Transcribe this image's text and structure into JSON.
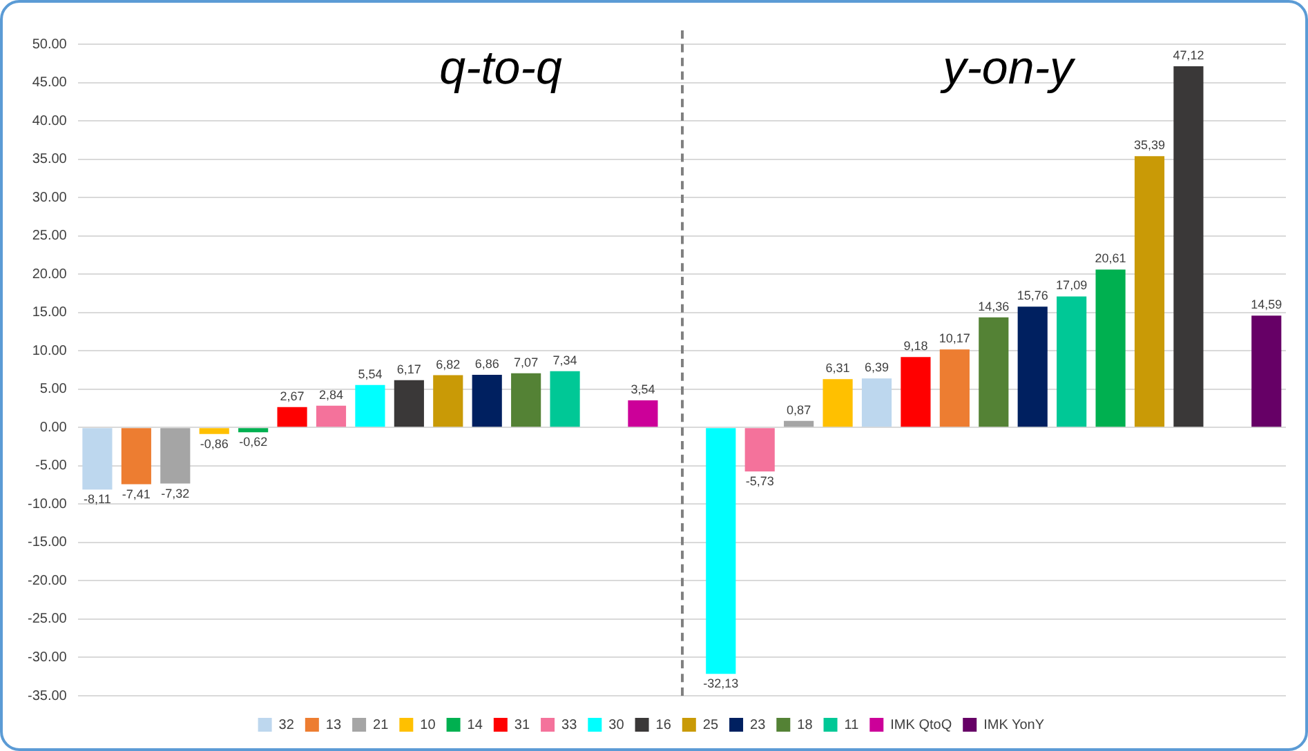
{
  "chart_data": {
    "type": "bar",
    "categories": [
      null,
      null,
      null,
      null,
      null,
      null,
      null,
      null,
      null,
      null,
      null,
      null,
      null,
      null,
      null,
      null,
      null,
      null,
      null,
      null,
      null,
      null,
      null,
      null,
      null,
      null,
      null,
      null,
      null,
      null,
      null
    ],
    "series": [
      {
        "name": "32",
        "color": "#bdd7ee",
        "values": [
          -8.11,
          null,
          null,
          null,
          null,
          null,
          null,
          null,
          null,
          null,
          null,
          null,
          null,
          null,
          null,
          null,
          null,
          null,
          null,
          null,
          6.39,
          null,
          null,
          null,
          null,
          null,
          null,
          null,
          null,
          null,
          null
        ],
        "value_labels": [
          "-8,11",
          null,
          null,
          null,
          null,
          null,
          null,
          null,
          null,
          null,
          null,
          null,
          null,
          null,
          null,
          null,
          null,
          null,
          null,
          null,
          "6,39",
          null,
          null,
          null,
          null,
          null,
          null,
          null,
          null,
          null,
          null
        ]
      },
      {
        "name": "13",
        "color": "#ed7d31",
        "values": [
          null,
          -7.41,
          null,
          null,
          null,
          null,
          null,
          null,
          null,
          null,
          null,
          null,
          null,
          null,
          null,
          null,
          null,
          null,
          null,
          null,
          null,
          null,
          10.17,
          null,
          null,
          null,
          null,
          null,
          null,
          null,
          null
        ],
        "value_labels": [
          null,
          "-7,41",
          null,
          null,
          null,
          null,
          null,
          null,
          null,
          null,
          null,
          null,
          null,
          null,
          null,
          null,
          null,
          null,
          null,
          null,
          null,
          null,
          "10,17",
          null,
          null,
          null,
          null,
          null,
          null,
          null,
          null
        ]
      },
      {
        "name": "21",
        "color": "#a5a5a5",
        "values": [
          null,
          null,
          -7.32,
          null,
          null,
          null,
          null,
          null,
          null,
          null,
          null,
          null,
          null,
          null,
          null,
          null,
          null,
          null,
          0.87,
          null,
          null,
          null,
          null,
          null,
          null,
          null,
          null,
          null,
          null,
          null,
          null
        ],
        "value_labels": [
          null,
          null,
          "-7,32",
          null,
          null,
          null,
          null,
          null,
          null,
          null,
          null,
          null,
          null,
          null,
          null,
          null,
          null,
          null,
          "0,87",
          null,
          null,
          null,
          null,
          null,
          null,
          null,
          null,
          null,
          null,
          null,
          null
        ]
      },
      {
        "name": "10",
        "color": "#ffc000",
        "values": [
          null,
          null,
          null,
          -0.86,
          null,
          null,
          null,
          null,
          null,
          null,
          null,
          null,
          null,
          null,
          null,
          null,
          null,
          null,
          null,
          6.31,
          null,
          null,
          null,
          null,
          null,
          null,
          null,
          null,
          null,
          null,
          null
        ],
        "value_labels": [
          null,
          null,
          null,
          "-0,86",
          null,
          null,
          null,
          null,
          null,
          null,
          null,
          null,
          null,
          null,
          null,
          null,
          null,
          null,
          null,
          "6,31",
          null,
          null,
          null,
          null,
          null,
          null,
          null,
          null,
          null,
          null,
          null
        ]
      },
      {
        "name": "14",
        "color": "#00b050",
        "values": [
          null,
          null,
          null,
          null,
          -0.62,
          null,
          null,
          null,
          null,
          null,
          null,
          null,
          null,
          null,
          null,
          null,
          null,
          null,
          null,
          null,
          null,
          null,
          null,
          null,
          null,
          null,
          20.61,
          null,
          null,
          null,
          null
        ],
        "value_labels": [
          null,
          null,
          null,
          null,
          "-0,62",
          null,
          null,
          null,
          null,
          null,
          null,
          null,
          null,
          null,
          null,
          null,
          null,
          null,
          null,
          null,
          null,
          null,
          null,
          null,
          null,
          null,
          "20,61",
          null,
          null,
          null,
          null
        ]
      },
      {
        "name": "31",
        "color": "#ff0000",
        "values": [
          null,
          null,
          null,
          null,
          null,
          2.67,
          null,
          null,
          null,
          null,
          null,
          null,
          null,
          null,
          null,
          null,
          null,
          null,
          null,
          null,
          null,
          9.18,
          null,
          null,
          null,
          null,
          null,
          null,
          null,
          null,
          null
        ],
        "value_labels": [
          null,
          null,
          null,
          null,
          null,
          "2,67",
          null,
          null,
          null,
          null,
          null,
          null,
          null,
          null,
          null,
          null,
          null,
          null,
          null,
          null,
          null,
          "9,18",
          null,
          null,
          null,
          null,
          null,
          null,
          null,
          null,
          null
        ]
      },
      {
        "name": "33",
        "color": "#f4729b",
        "values": [
          null,
          null,
          null,
          null,
          null,
          null,
          2.84,
          null,
          null,
          null,
          null,
          null,
          null,
          null,
          null,
          null,
          null,
          -5.73,
          null,
          null,
          null,
          null,
          null,
          null,
          null,
          null,
          null,
          null,
          null,
          null,
          null
        ],
        "value_labels": [
          null,
          null,
          null,
          null,
          null,
          null,
          "2,84",
          null,
          null,
          null,
          null,
          null,
          null,
          null,
          null,
          null,
          null,
          "-5,73",
          null,
          null,
          null,
          null,
          null,
          null,
          null,
          null,
          null,
          null,
          null,
          null,
          null
        ]
      },
      {
        "name": "30",
        "color": "#00ffff",
        "values": [
          null,
          null,
          null,
          null,
          null,
          null,
          null,
          5.54,
          null,
          null,
          null,
          null,
          null,
          null,
          null,
          null,
          -32.13,
          null,
          null,
          null,
          null,
          null,
          null,
          null,
          null,
          null,
          null,
          null,
          null,
          null,
          null
        ],
        "value_labels": [
          null,
          null,
          null,
          null,
          null,
          null,
          null,
          "5,54",
          null,
          null,
          null,
          null,
          null,
          null,
          null,
          null,
          "-32,13",
          null,
          null,
          null,
          null,
          null,
          null,
          null,
          null,
          null,
          null,
          null,
          null,
          null,
          null
        ]
      },
      {
        "name": "16",
        "color": "#3a3838",
        "values": [
          null,
          null,
          null,
          null,
          null,
          null,
          null,
          null,
          6.17,
          null,
          null,
          null,
          null,
          null,
          null,
          null,
          null,
          null,
          null,
          null,
          null,
          null,
          null,
          null,
          null,
          null,
          null,
          null,
          47.12,
          null,
          null
        ],
        "value_labels": [
          null,
          null,
          null,
          null,
          null,
          null,
          null,
          null,
          "6,17",
          null,
          null,
          null,
          null,
          null,
          null,
          null,
          null,
          null,
          null,
          null,
          null,
          null,
          null,
          null,
          null,
          null,
          null,
          null,
          "47,12",
          null,
          null
        ]
      },
      {
        "name": "25",
        "color": "#c99a06",
        "values": [
          null,
          null,
          null,
          null,
          null,
          null,
          null,
          null,
          null,
          6.82,
          null,
          null,
          null,
          null,
          null,
          null,
          null,
          null,
          null,
          null,
          null,
          null,
          null,
          null,
          null,
          null,
          null,
          35.39,
          null,
          null,
          null
        ],
        "value_labels": [
          null,
          null,
          null,
          null,
          null,
          null,
          null,
          null,
          null,
          "6,82",
          null,
          null,
          null,
          null,
          null,
          null,
          null,
          null,
          null,
          null,
          null,
          null,
          null,
          null,
          null,
          null,
          null,
          "35,39",
          null,
          null,
          null
        ]
      },
      {
        "name": "23",
        "color": "#002060",
        "values": [
          null,
          null,
          null,
          null,
          null,
          null,
          null,
          null,
          null,
          null,
          6.86,
          null,
          null,
          null,
          null,
          null,
          null,
          null,
          null,
          null,
          null,
          null,
          null,
          null,
          15.76,
          null,
          null,
          null,
          null,
          null,
          null
        ],
        "value_labels": [
          null,
          null,
          null,
          null,
          null,
          null,
          null,
          null,
          null,
          null,
          "6,86",
          null,
          null,
          null,
          null,
          null,
          null,
          null,
          null,
          null,
          null,
          null,
          null,
          null,
          "15,76",
          null,
          null,
          null,
          null,
          null,
          null
        ]
      },
      {
        "name": "18",
        "color": "#548235",
        "values": [
          null,
          null,
          null,
          null,
          null,
          null,
          null,
          null,
          null,
          null,
          null,
          7.07,
          null,
          null,
          null,
          null,
          null,
          null,
          null,
          null,
          null,
          null,
          null,
          14.36,
          null,
          null,
          null,
          null,
          null,
          null,
          null
        ],
        "value_labels": [
          null,
          null,
          null,
          null,
          null,
          null,
          null,
          null,
          null,
          null,
          null,
          "7,07",
          null,
          null,
          null,
          null,
          null,
          null,
          null,
          null,
          null,
          null,
          null,
          "14,36",
          null,
          null,
          null,
          null,
          null,
          null,
          null
        ]
      },
      {
        "name": "11",
        "color": "#00c896",
        "values": [
          null,
          null,
          null,
          null,
          null,
          null,
          null,
          null,
          null,
          null,
          null,
          null,
          7.34,
          null,
          null,
          null,
          null,
          null,
          null,
          null,
          null,
          null,
          null,
          null,
          null,
          17.09,
          null,
          null,
          null,
          null,
          null
        ],
        "value_labels": [
          null,
          null,
          null,
          null,
          null,
          null,
          null,
          null,
          null,
          null,
          null,
          null,
          "7,34",
          null,
          null,
          null,
          null,
          null,
          null,
          null,
          null,
          null,
          null,
          null,
          null,
          "17,09",
          null,
          null,
          null,
          null,
          null
        ]
      },
      {
        "name": "IMK QtoQ",
        "color": "#cc0099",
        "values": [
          null,
          null,
          null,
          null,
          null,
          null,
          null,
          null,
          null,
          null,
          null,
          null,
          null,
          null,
          3.54,
          null,
          null,
          null,
          null,
          null,
          null,
          null,
          null,
          null,
          null,
          null,
          null,
          null,
          null,
          null,
          null
        ],
        "value_labels": [
          null,
          null,
          null,
          null,
          null,
          null,
          null,
          null,
          null,
          null,
          null,
          null,
          null,
          null,
          "3,54",
          null,
          null,
          null,
          null,
          null,
          null,
          null,
          null,
          null,
          null,
          null,
          null,
          null,
          null,
          null,
          null
        ]
      },
      {
        "name": "IMK YonY",
        "color": "#660066",
        "values": [
          null,
          null,
          null,
          null,
          null,
          null,
          null,
          null,
          null,
          null,
          null,
          null,
          null,
          null,
          null,
          null,
          null,
          null,
          null,
          null,
          null,
          null,
          null,
          null,
          null,
          null,
          null,
          null,
          null,
          null,
          14.59
        ],
        "value_labels": [
          null,
          null,
          null,
          null,
          null,
          null,
          null,
          null,
          null,
          null,
          null,
          null,
          null,
          null,
          null,
          null,
          null,
          null,
          null,
          null,
          null,
          null,
          null,
          null,
          null,
          null,
          null,
          null,
          null,
          null,
          "14,59"
        ]
      }
    ],
    "ylim": [
      -35,
      50
    ],
    "yticks": [
      {
        "value": -35,
        "label": "-35.00"
      },
      {
        "value": -30,
        "label": "-30.00"
      },
      {
        "value": -25,
        "label": "-25.00"
      },
      {
        "value": -20,
        "label": "-20.00"
      },
      {
        "value": -15,
        "label": "-15.00"
      },
      {
        "value": -10,
        "label": "-10.00"
      },
      {
        "value": -5,
        "label": "-5.00"
      },
      {
        "value": 0,
        "label": "0.00"
      },
      {
        "value": 5,
        "label": "5.00"
      },
      {
        "value": 10,
        "label": "10.00"
      },
      {
        "value": 15,
        "label": "15.00"
      },
      {
        "value": 20,
        "label": "20.00"
      },
      {
        "value": 25,
        "label": "25.00"
      },
      {
        "value": 30,
        "label": "30.00"
      },
      {
        "value": 35,
        "label": "35.00"
      },
      {
        "value": 40,
        "label": "40.00"
      },
      {
        "value": 45,
        "label": "45.00"
      },
      {
        "value": 50,
        "label": "50.00"
      }
    ],
    "annotations": [
      "q-to-q",
      "y-on-y"
    ],
    "grid": "y",
    "legend": "bottom",
    "tick_labels": "y"
  }
}
